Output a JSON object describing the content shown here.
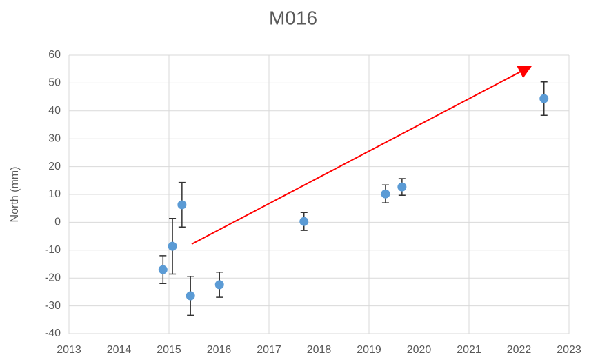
{
  "chart_data": {
    "type": "scatter",
    "title": "M016",
    "y_label": "North (mm)",
    "x": [
      2014.88,
      2015.07,
      2015.26,
      2015.43,
      2016.01,
      2017.7,
      2019.33,
      2019.66,
      2022.5
    ],
    "values": [
      -17,
      -8.6,
      6.3,
      -26.4,
      -22.4,
      0.3,
      10.2,
      12.7,
      44.4
    ],
    "errors": [
      5,
      10,
      8,
      7,
      4.5,
      3.2,
      3.2,
      3,
      6
    ],
    "color": "#5b9bd5",
    "error_color": "#333333",
    "xlim": [
      2013,
      2023
    ],
    "xticks": [
      2013,
      2014,
      2015,
      2016,
      2017,
      2018,
      2019,
      2020,
      2021,
      2022,
      2023
    ],
    "ylim": [
      -40,
      60
    ],
    "yticks": [
      -40,
      -30,
      -20,
      -10,
      0,
      10,
      20,
      30,
      40,
      50,
      60
    ],
    "grid": true
  }
}
